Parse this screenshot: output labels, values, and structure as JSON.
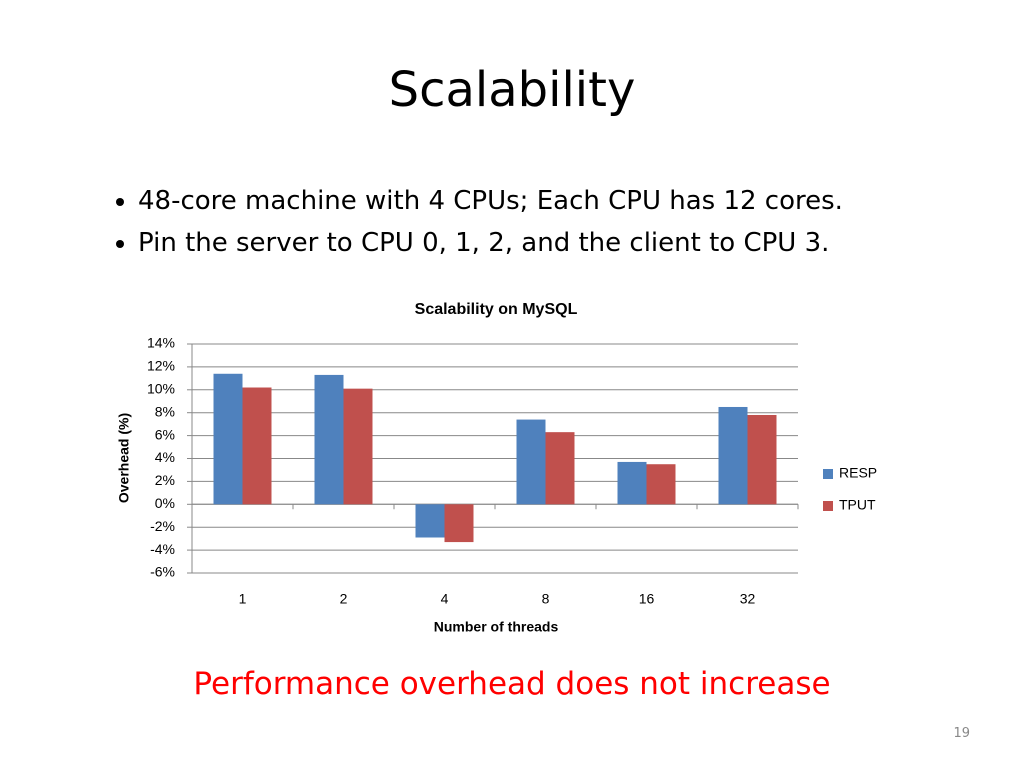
{
  "slide": {
    "title": "Scalability",
    "bullets": [
      "48-core machine with 4 CPUs; Each CPU has 12 cores.",
      "Pin the server to CPU 0, 1, 2, and the client to CPU 3."
    ],
    "note": "Performance overhead does not increase",
    "page_number": "19"
  },
  "chart_data": {
    "type": "bar",
    "title": "Scalability on MySQL",
    "x_label": "Number of threads",
    "y_label": "Overhead (%)",
    "categories": [
      "1",
      "2",
      "4",
      "8",
      "16",
      "32"
    ],
    "series": [
      {
        "name": "RESP",
        "color": "#4f81bd",
        "values": [
          11.4,
          11.3,
          -2.9,
          7.4,
          3.7,
          8.5
        ]
      },
      {
        "name": "TPUT",
        "color": "#c0504d",
        "values": [
          10.2,
          10.1,
          -3.3,
          6.3,
          3.5,
          7.8
        ]
      }
    ],
    "ylim": [
      -6,
      14
    ],
    "yticks": [
      {
        "value": -6,
        "label": "-6%"
      },
      {
        "value": -4,
        "label": "-4%"
      },
      {
        "value": -2,
        "label": "-2%"
      },
      {
        "value": 0,
        "label": "0%"
      },
      {
        "value": 2,
        "label": "2%"
      },
      {
        "value": 4,
        "label": "4%"
      },
      {
        "value": 6,
        "label": "6%"
      },
      {
        "value": 8,
        "label": "8%"
      },
      {
        "value": 10,
        "label": "10%"
      },
      {
        "value": 12,
        "label": "12%"
      },
      {
        "value": 14,
        "label": "14%"
      }
    ],
    "grid": true,
    "legend": "right"
  }
}
